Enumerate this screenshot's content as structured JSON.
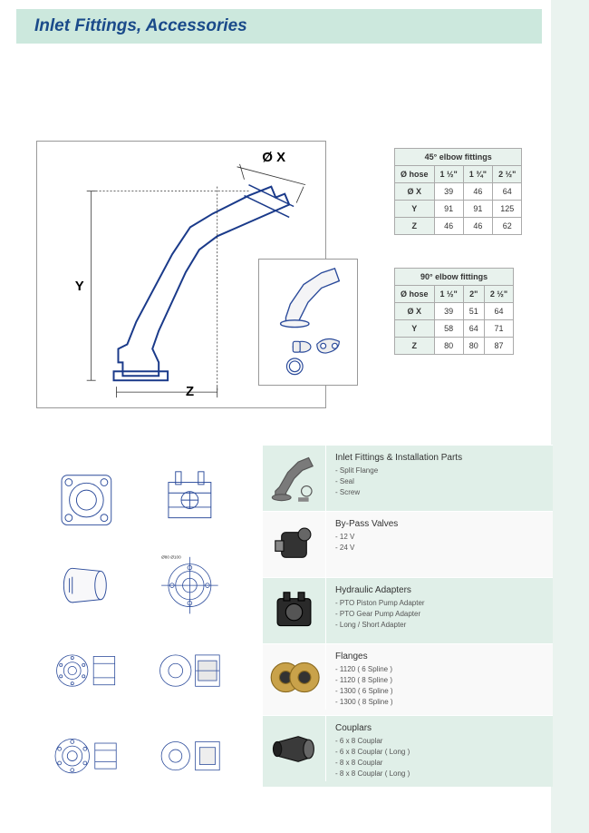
{
  "header": {
    "title": "Inlet Fittings, Accessories",
    "bg_color": "#cce8dd",
    "title_color": "#1a4a8a"
  },
  "diagram": {
    "x_label": "Ø X",
    "y_label": "Y",
    "z_label": "Z",
    "stroke": "#1a3a8a"
  },
  "table45": {
    "title": "45° elbow fittings",
    "row_labels": [
      "Ø hose",
      "Ø X",
      "Y",
      "Z"
    ],
    "columns": [
      "1 ½\"",
      "1 ¾\"",
      "2 ½\""
    ],
    "rows": [
      [
        "39",
        "46",
        "64"
      ],
      [
        "91",
        "91",
        "125"
      ],
      [
        "46",
        "46",
        "62"
      ]
    ],
    "header_bg": "#e8f2ed"
  },
  "table90": {
    "title": "90° elbow fittings",
    "row_labels": [
      "Ø hose",
      "Ø X",
      "Y",
      "Z"
    ],
    "columns": [
      "1 ½\"",
      "2\"",
      "2 ½\""
    ],
    "rows": [
      [
        "39",
        "51",
        "64"
      ],
      [
        "58",
        "64",
        "71"
      ],
      [
        "80",
        "80",
        "87"
      ]
    ],
    "header_bg": "#e8f2ed"
  },
  "products": [
    {
      "title": "Inlet Fittings & Installation Parts",
      "items": [
        "Split Flange",
        "Seal",
        "Screw"
      ],
      "icon": "elbow",
      "alt": true
    },
    {
      "title": "By-Pass Valves",
      "items": [
        "12 V",
        "24 V"
      ],
      "icon": "valve",
      "alt": false
    },
    {
      "title": "Hydraulic Adapters",
      "items": [
        "PTO Piston Pump Adapter",
        "PTO Gear Pump Adapter",
        "Long / Short Adapter"
      ],
      "icon": "adapter",
      "alt": true
    },
    {
      "title": "Flanges",
      "items": [
        "1120 ( 6 Spline )",
        "1120 ( 8 Spline )",
        "1300 ( 6 Spline )",
        "1300 ( 8 Spline )"
      ],
      "icon": "flange",
      "alt": false
    },
    {
      "title": "Couplars",
      "items": [
        "6 x 8 Couplar",
        "6 x 8 Couplar ( Long )",
        "8 x 8 Couplar",
        "8 x 8 Couplar ( Long )"
      ],
      "icon": "couplar",
      "alt": true
    }
  ],
  "colors": {
    "right_strip": "#eaf3ef",
    "alt_row": "#e0efe8",
    "line_blue": "#2a4a9a"
  }
}
